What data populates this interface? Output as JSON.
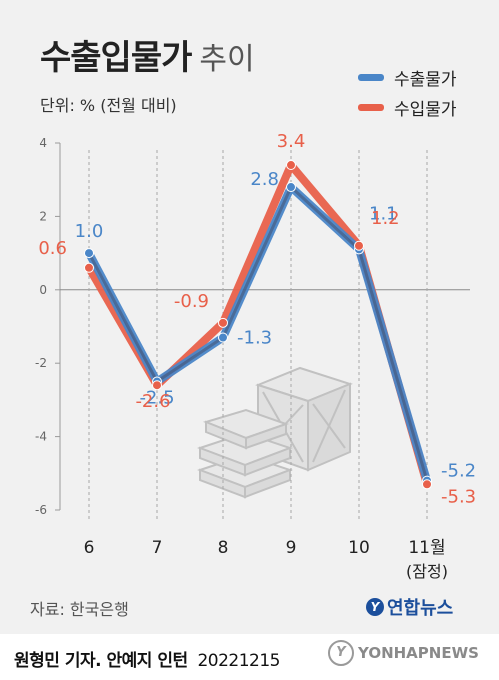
{
  "header": {
    "title_main": "수출입물가",
    "title_sub": "추이",
    "unit": "단위: % (전월 대비)"
  },
  "legend": [
    {
      "label": "수출물가",
      "color": "#4a86c8"
    },
    {
      "label": "수입물가",
      "color": "#e8604a"
    }
  ],
  "footer": {
    "source": "자료: 한국은행",
    "logo_text": "연합뉴스",
    "credit_name": "원형민 기자. 안예지 인턴",
    "credit_date": "20221215",
    "watermark": "YONHAPNEWS"
  },
  "chart_data": {
    "type": "line",
    "categories": [
      "6",
      "7",
      "8",
      "9",
      "10",
      "11월"
    ],
    "category_sub": [
      "",
      "",
      "",
      "",
      "",
      "(잠정)"
    ],
    "ylim": [
      -6,
      4
    ],
    "yticks": [
      4,
      2,
      0,
      -2,
      -4,
      -6
    ],
    "grid": false,
    "legend_position": "top-right",
    "series": [
      {
        "name": "수출물가",
        "color": "#4a86c8",
        "values": [
          1.0,
          -2.5,
          -1.3,
          2.8,
          1.1,
          -5.2
        ],
        "labels": [
          "1.0",
          "-2.5",
          "-1.3",
          "2.8",
          "1.1",
          "-5.2"
        ]
      },
      {
        "name": "수입물가",
        "color": "#e8604a",
        "values": [
          0.6,
          -2.6,
          -0.9,
          3.4,
          1.2,
          -5.3
        ],
        "labels": [
          "0.6",
          "-2.6",
          "-0.9",
          "3.4",
          "1.2",
          "-5.3"
        ]
      }
    ]
  }
}
